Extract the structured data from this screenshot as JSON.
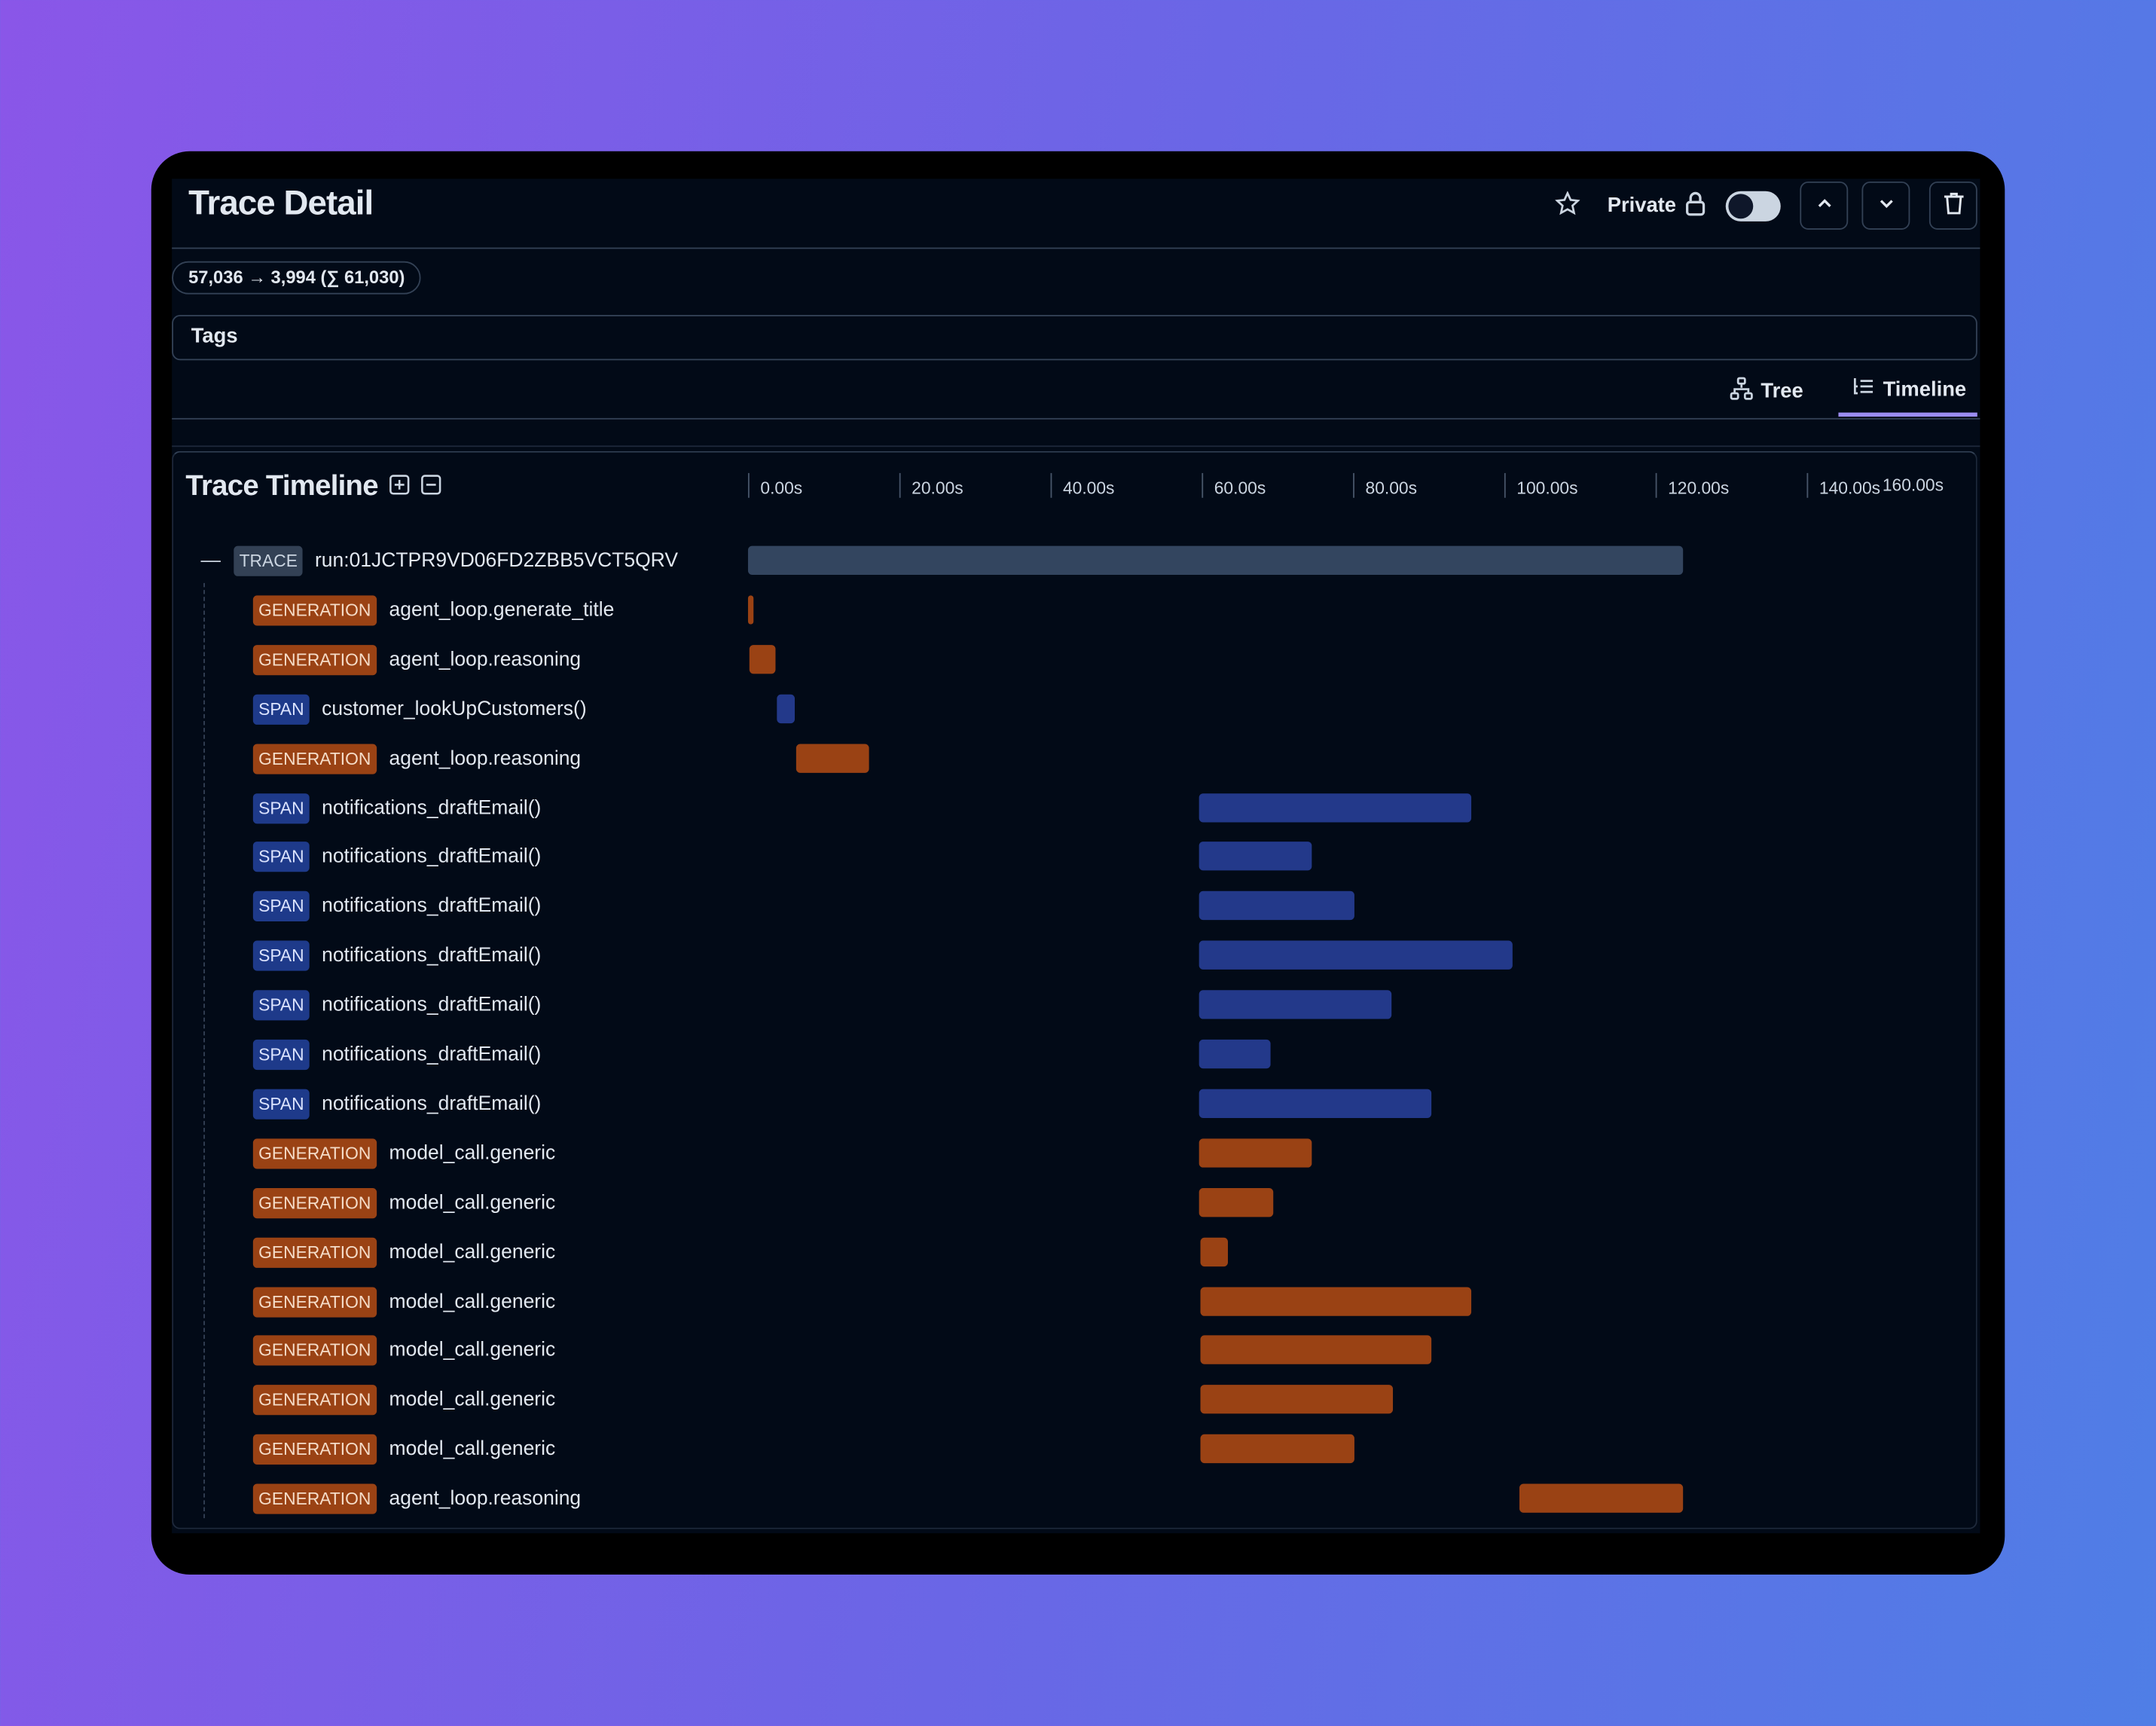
{
  "header": {
    "title": "Trace Detail",
    "private_label": "Private",
    "private_enabled": false
  },
  "usage_pill": "57,036 → 3,994 (∑ 61,030)",
  "tags_label": "Tags",
  "tabs": [
    {
      "label": "Tree",
      "icon": "tree-icon",
      "active": false
    },
    {
      "label": "Timeline",
      "icon": "timeline-icon",
      "active": true
    }
  ],
  "timeline": {
    "title": "Trace Timeline",
    "axis_ticks": [
      "0.00s",
      "20.00s",
      "40.00s",
      "60.00s",
      "80.00s",
      "100.00s",
      "120.00s",
      "140.00s",
      "160.00s"
    ],
    "axis_max_s": 160,
    "colors": {
      "GENERATION": "#9a4214",
      "SPAN": "#23398a",
      "TRACE": "#33455f"
    },
    "rows": [
      {
        "type": "TRACE",
        "name": "run:01JCTPR9VD06FD2ZBB5VCT5QRV",
        "start": 0,
        "end": 123.6,
        "depth": 0
      },
      {
        "type": "GENERATION",
        "name": "agent_loop.generate_title",
        "start": 0,
        "end": 0.7,
        "depth": 1
      },
      {
        "type": "GENERATION",
        "name": "agent_loop.reasoning",
        "start": 0.2,
        "end": 3.6,
        "depth": 1
      },
      {
        "type": "SPAN",
        "name": "customer_lookUpCustomers()",
        "start": 3.8,
        "end": 6.2,
        "depth": 1
      },
      {
        "type": "GENERATION",
        "name": "agent_loop.reasoning",
        "start": 6.4,
        "end": 16.0,
        "depth": 1
      },
      {
        "type": "SPAN",
        "name": "notifications_draftEmail()",
        "start": 59.6,
        "end": 95.6,
        "depth": 1
      },
      {
        "type": "SPAN",
        "name": "notifications_draftEmail()",
        "start": 59.6,
        "end": 74.5,
        "depth": 1
      },
      {
        "type": "SPAN",
        "name": "notifications_draftEmail()",
        "start": 59.6,
        "end": 80.2,
        "depth": 1
      },
      {
        "type": "SPAN",
        "name": "notifications_draftEmail()",
        "start": 59.6,
        "end": 101.1,
        "depth": 1
      },
      {
        "type": "SPAN",
        "name": "notifications_draftEmail()",
        "start": 59.6,
        "end": 85.1,
        "depth": 1
      },
      {
        "type": "SPAN",
        "name": "notifications_draftEmail()",
        "start": 59.6,
        "end": 69.1,
        "depth": 1
      },
      {
        "type": "SPAN",
        "name": "notifications_draftEmail()",
        "start": 59.6,
        "end": 90.4,
        "depth": 1
      },
      {
        "type": "GENERATION",
        "name": "model_call.generic",
        "start": 59.6,
        "end": 74.5,
        "depth": 1
      },
      {
        "type": "GENERATION",
        "name": "model_call.generic",
        "start": 59.6,
        "end": 69.5,
        "depth": 1
      },
      {
        "type": "GENERATION",
        "name": "model_call.generic",
        "start": 59.8,
        "end": 63.5,
        "depth": 1
      },
      {
        "type": "GENERATION",
        "name": "model_call.generic",
        "start": 59.8,
        "end": 95.6,
        "depth": 1
      },
      {
        "type": "GENERATION",
        "name": "model_call.generic",
        "start": 59.8,
        "end": 90.4,
        "depth": 1
      },
      {
        "type": "GENERATION",
        "name": "model_call.generic",
        "start": 59.8,
        "end": 85.3,
        "depth": 1
      },
      {
        "type": "GENERATION",
        "name": "model_call.generic",
        "start": 59.8,
        "end": 80.2,
        "depth": 1
      },
      {
        "type": "GENERATION",
        "name": "agent_loop.reasoning",
        "start": 102.0,
        "end": 123.6,
        "depth": 1
      }
    ]
  }
}
